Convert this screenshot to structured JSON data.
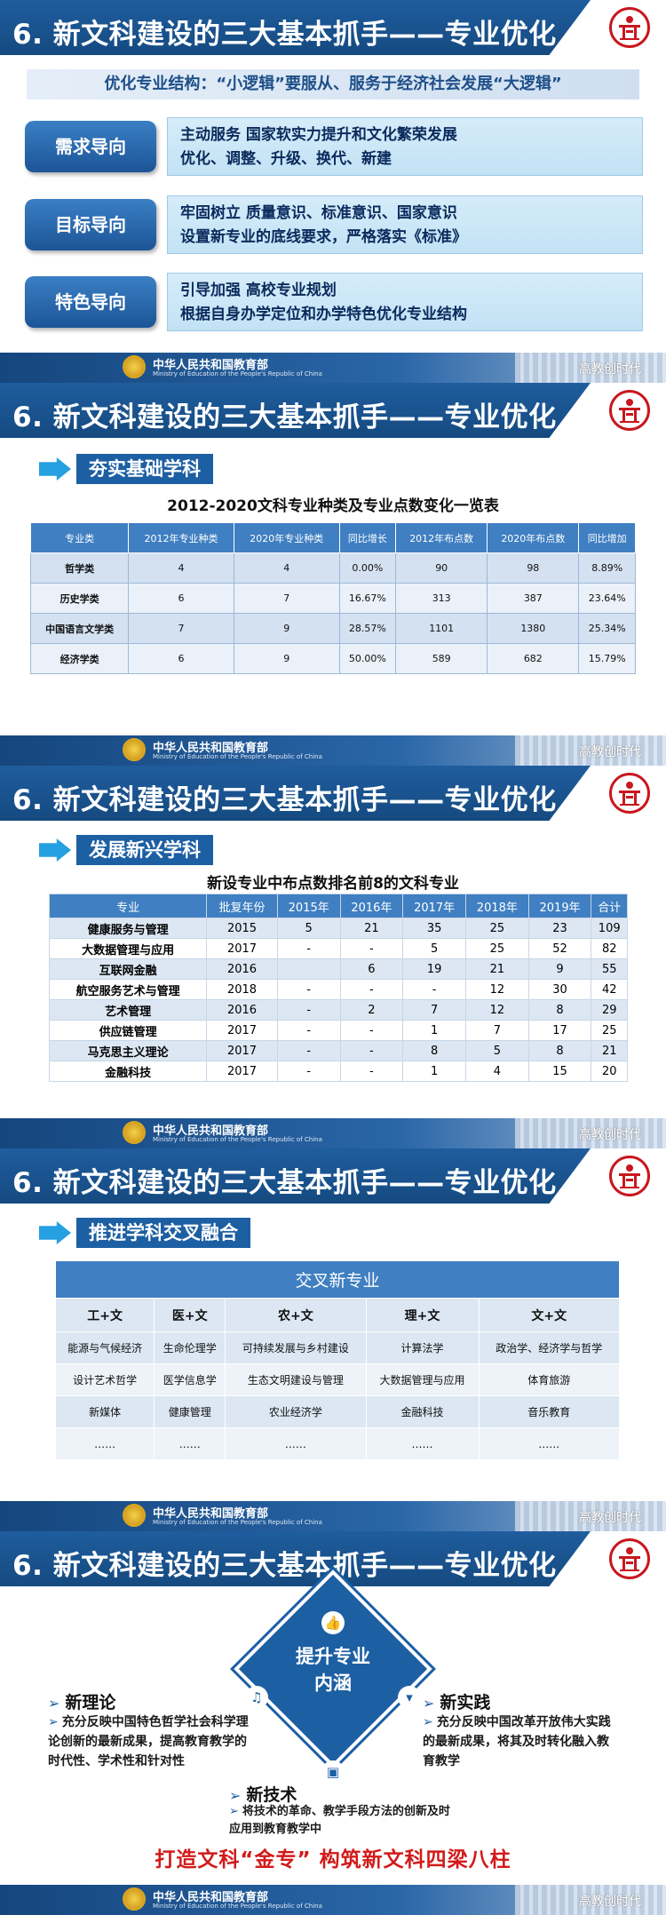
{
  "common": {
    "title": "6. 新文科建设的三大基本抓手——专业优化",
    "ministry_cn": "中华人民共和国教育部",
    "ministry_en": "Ministry of Education of the People's Republic of China",
    "watermark": "高教创时代"
  },
  "slide1": {
    "subtitle": "优化专业结构：“小逻辑”要服从、服务于经济社会发展“大逻辑”",
    "rows": [
      {
        "label": "需求导向",
        "line1": "主动服务 国家软实力提升和文化繁荣发展",
        "line2": "优化、调整、升级、换代、新建"
      },
      {
        "label": "目标导向",
        "line1": "牢固树立 质量意识、标准意识、国家意识",
        "line2": "设置新专业的底线要求，严格落实《标准》"
      },
      {
        "label": "特色导向",
        "line1": "引导加强 高校专业规划",
        "line2": "根据自身办学定位和办学特色优化专业结构"
      }
    ]
  },
  "slide2": {
    "section": "夯实基础学科",
    "table_title": "2012-2020文科专业种类及专业点数变化一览表",
    "headers": [
      "专业类",
      "2012年专业种类",
      "2020年专业种类",
      "同比增长",
      "2012年布点数",
      "2020年布点数",
      "同比增加"
    ],
    "rows": [
      [
        "哲学类",
        "4",
        "4",
        "0.00%",
        "90",
        "98",
        "8.89%"
      ],
      [
        "历史学类",
        "6",
        "7",
        "16.67%",
        "313",
        "387",
        "23.64%"
      ],
      [
        "中国语言文学类",
        "7",
        "9",
        "28.57%",
        "1101",
        "1380",
        "25.34%"
      ],
      [
        "经济学类",
        "6",
        "9",
        "50.00%",
        "589",
        "682",
        "15.79%"
      ]
    ]
  },
  "slide3": {
    "section": "发展新兴学科",
    "table_title": "新设专业中布点数排名前8的文科专业",
    "headers": [
      "专业",
      "批复年份",
      "2015年",
      "2016年",
      "2017年",
      "2018年",
      "2019年",
      "合计"
    ],
    "rows": [
      [
        "健康服务与管理",
        "2015",
        "5",
        "21",
        "35",
        "25",
        "23",
        "109"
      ],
      [
        "大数据管理与应用",
        "2017",
        "-",
        "-",
        "5",
        "25",
        "52",
        "82"
      ],
      [
        "互联网金融",
        "2016",
        "",
        "6",
        "19",
        "21",
        "9",
        "55"
      ],
      [
        "航空服务艺术与管理",
        "2018",
        "-",
        "-",
        "-",
        "12",
        "30",
        "42"
      ],
      [
        "艺术管理",
        "2016",
        "-",
        "2",
        "7",
        "12",
        "8",
        "29"
      ],
      [
        "供应链管理",
        "2017",
        "-",
        "-",
        "1",
        "7",
        "17",
        "25"
      ],
      [
        "马克思主义理论",
        "2017",
        "-",
        "-",
        "8",
        "5",
        "8",
        "21"
      ],
      [
        "金融科技",
        "2017",
        "-",
        "-",
        "1",
        "4",
        "15",
        "20"
      ]
    ]
  },
  "slide4": {
    "section": "推进学科交叉融合",
    "caption": "交叉新专业",
    "headers": [
      "工+文",
      "医+文",
      "农+文",
      "理+文",
      "文+文"
    ],
    "rows": [
      [
        "能源与气候经济",
        "生命伦理学",
        "可持续发展与乡村建设",
        "计算法学",
        "政治学、经济学与哲学"
      ],
      [
        "设计艺术哲学",
        "医学信息学",
        "生态文明建设与管理",
        "大数据管理与应用",
        "体育旅游"
      ],
      [
        "新媒体",
        "健康管理",
        "农业经济学",
        "金融科技",
        "音乐教育"
      ],
      [
        "……",
        "……",
        "……",
        "……",
        "……"
      ]
    ]
  },
  "slide5": {
    "center_line1": "提升专业",
    "center_line2": "内涵",
    "icons": [
      "thumbs-up-icon",
      "music-icon",
      "cup-icon",
      "printer-icon"
    ],
    "theory_head": "新理论",
    "theory_body": "充分反映中国特色哲学社会科学理论创新的最新成果，提高教育教学的时代性、学术性和针对性",
    "practice_head": "新实践",
    "practice_body": "充分反映中国改革开放伟大实践的最新成果，将其及时转化融入教育教学",
    "tech_head": "新技术",
    "tech_body": "将技术的革命、教学手段方法的创新及时应用到教育教学中",
    "bottom": "打造文科“金专”   构筑新文科四梁八柱"
  }
}
